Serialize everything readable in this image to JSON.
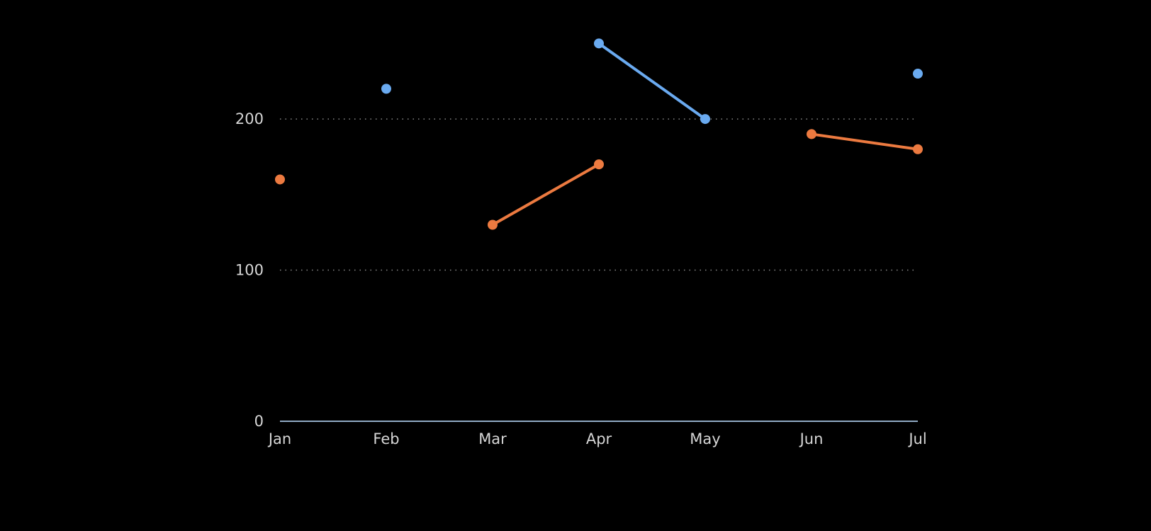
{
  "chart_data": {
    "type": "line",
    "title": "",
    "xlabel": "",
    "ylabel": "",
    "categories": [
      "Jan",
      "Feb",
      "Mar",
      "Apr",
      "May",
      "Jun",
      "Jul"
    ],
    "yticks": [
      0,
      100,
      200
    ],
    "ytick_labels": [
      "0",
      "100",
      "200"
    ],
    "ylim": [
      0,
      260
    ],
    "grid": true,
    "legend": "none",
    "series": [
      {
        "color": "#6aaaf0",
        "values": [
          null,
          220,
          null,
          250,
          200,
          null,
          230
        ]
      },
      {
        "color": "#ec7a40",
        "values": [
          160,
          null,
          130,
          170,
          null,
          190,
          180
        ]
      }
    ]
  }
}
